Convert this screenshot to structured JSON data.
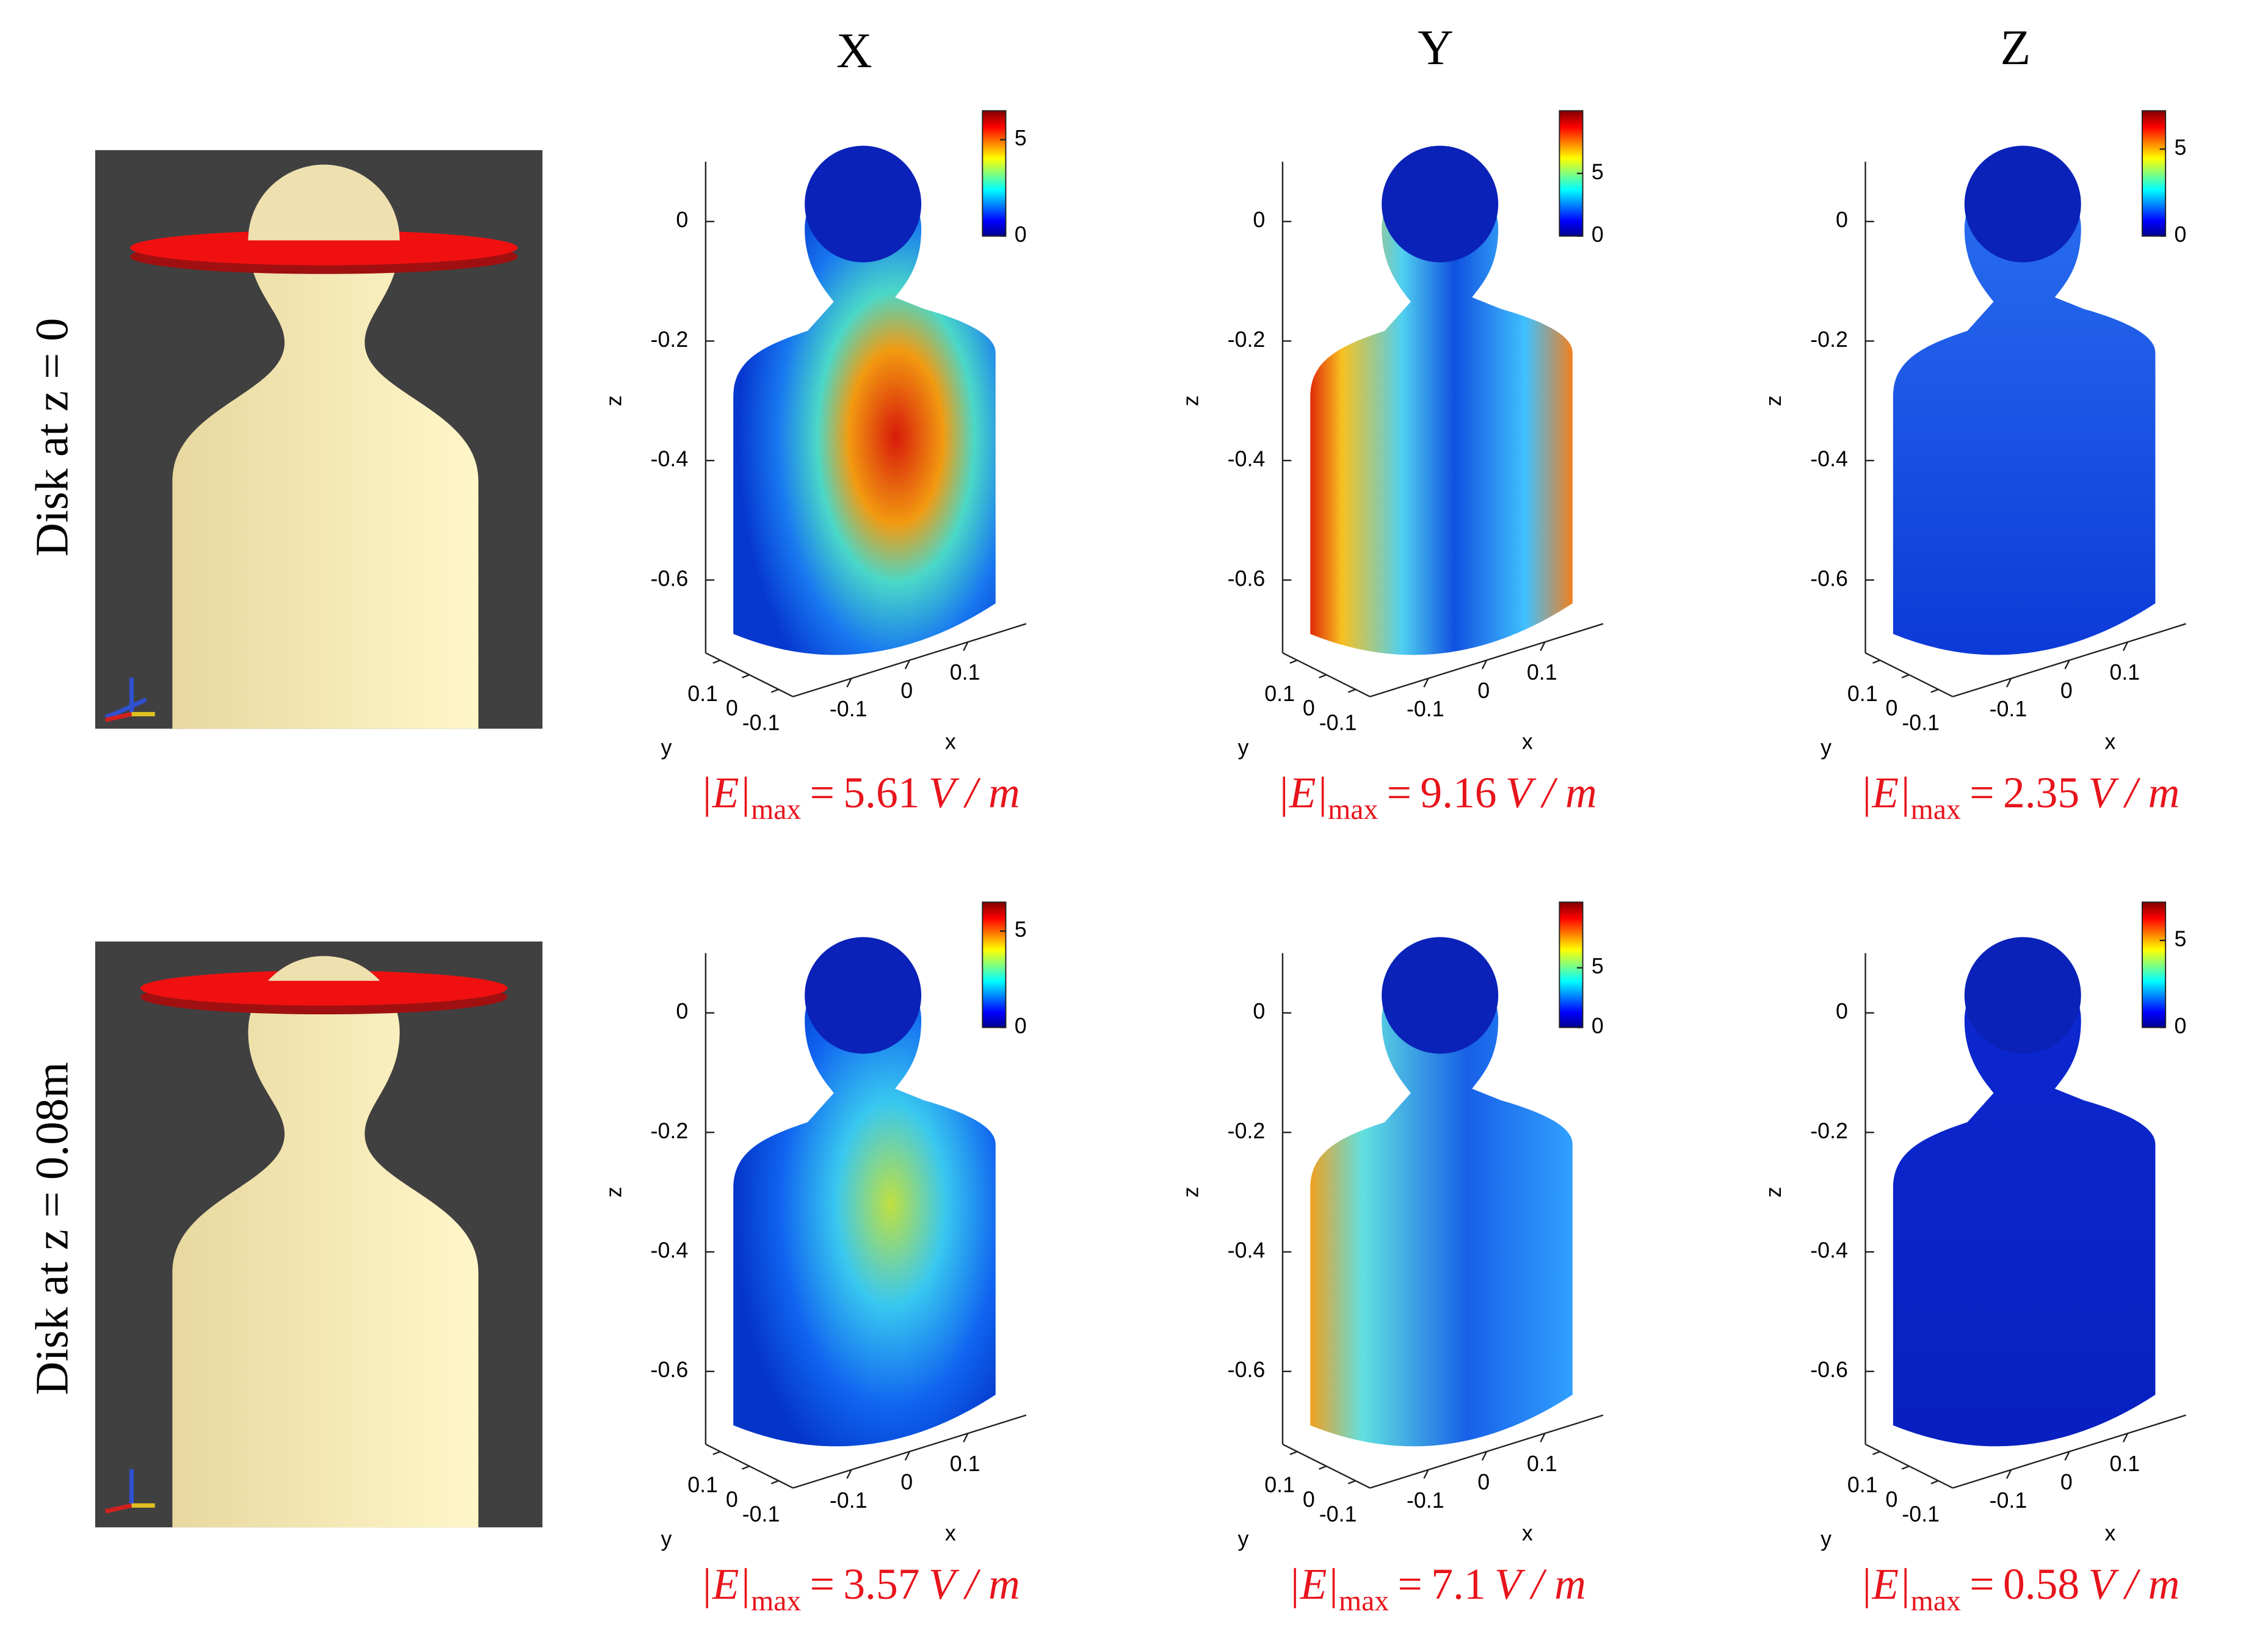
{
  "columns": [
    "X",
    "Y",
    "Z"
  ],
  "rows": [
    {
      "label": "Disk at z = 0",
      "panels": [
        {
          "colorbar": {
            "clim": [
              0,
              6.5
            ],
            "ticks": [
              0,
              5
            ]
          },
          "zlim": [
            -0.7,
            0.1
          ],
          "zticks": [
            0,
            -0.2,
            -0.4,
            -0.6
          ],
          "xlim": [
            -0.2,
            0.2
          ],
          "xticks": [
            -0.1,
            0,
            0.1
          ],
          "ylim": [
            0.15,
            -0.15
          ],
          "yticks": [
            0.1,
            0,
            -0.1
          ],
          "xlabel": "x",
          "ylabel": "y",
          "zlabel": "z",
          "emax": {
            "symbol": "|E|",
            "subscript": "max",
            "equals": "=",
            "value": 5.61,
            "unit": "V / m"
          }
        },
        {
          "colorbar": {
            "clim": [
              0,
              10
            ],
            "ticks": [
              0,
              5
            ]
          },
          "zlim": [
            -0.7,
            0.1
          ],
          "zticks": [
            0,
            -0.2,
            -0.4,
            -0.6
          ],
          "xlim": [
            -0.2,
            0.2
          ],
          "xticks": [
            -0.1,
            0,
            0.1
          ],
          "ylim": [
            0.15,
            -0.15
          ],
          "yticks": [
            0.1,
            0,
            -0.1
          ],
          "xlabel": "x",
          "ylabel": "y",
          "zlabel": "z",
          "emax": {
            "symbol": "|E|",
            "subscript": "max",
            "equals": "=",
            "value": 9.16,
            "unit": "V / m"
          }
        },
        {
          "colorbar": {
            "clim": [
              0,
              7.2
            ],
            "ticks": [
              0,
              5
            ]
          },
          "zlim": [
            -0.7,
            0.1
          ],
          "zticks": [
            0,
            -0.2,
            -0.4,
            -0.6
          ],
          "xlim": [
            -0.2,
            0.2
          ],
          "xticks": [
            -0.1,
            0,
            0.1
          ],
          "ylim": [
            0.15,
            -0.15
          ],
          "yticks": [
            0.1,
            0,
            -0.1
          ],
          "xlabel": "x",
          "ylabel": "y",
          "zlabel": "z",
          "emax": {
            "symbol": "|E|",
            "subscript": "max",
            "equals": "=",
            "value": 2.35,
            "unit": "V / m"
          }
        }
      ]
    },
    {
      "label": "Disk at z = 0.08m",
      "panels": [
        {
          "colorbar": {
            "clim": [
              0,
              6.5
            ],
            "ticks": [
              0,
              5
            ]
          },
          "zlim": [
            -0.7,
            0.1
          ],
          "zticks": [
            0,
            -0.2,
            -0.4,
            -0.6
          ],
          "xlim": [
            -0.2,
            0.2
          ],
          "xticks": [
            -0.1,
            0,
            0.1
          ],
          "ylim": [
            0.15,
            -0.15
          ],
          "yticks": [
            0.1,
            0,
            -0.1
          ],
          "xlabel": "x",
          "ylabel": "y",
          "zlabel": "z",
          "emax": {
            "symbol": "|E|",
            "subscript": "max",
            "equals": "=",
            "value": 3.57,
            "unit": "V / m"
          }
        },
        {
          "colorbar": {
            "clim": [
              0,
              10.5
            ],
            "ticks": [
              0,
              5
            ]
          },
          "zlim": [
            -0.7,
            0.1
          ],
          "zticks": [
            0,
            -0.2,
            -0.4,
            -0.6
          ],
          "xlim": [
            -0.2,
            0.2
          ],
          "xticks": [
            -0.1,
            0,
            0.1
          ],
          "ylim": [
            0.15,
            -0.15
          ],
          "yticks": [
            0.1,
            0,
            -0.1
          ],
          "xlabel": "x",
          "ylabel": "y",
          "zlabel": "z",
          "emax": {
            "symbol": "|E|",
            "subscript": "max",
            "equals": "=",
            "value": 7.1,
            "unit": "V / m"
          }
        },
        {
          "colorbar": {
            "clim": [
              0,
              7.2
            ],
            "ticks": [
              0,
              5
            ]
          },
          "zlim": [
            -0.7,
            0.1
          ],
          "zticks": [
            0,
            -0.2,
            -0.4,
            -0.6
          ],
          "xlim": [
            -0.2,
            0.2
          ],
          "xticks": [
            -0.1,
            0,
            0.1
          ],
          "ylim": [
            0.15,
            -0.15
          ],
          "yticks": [
            0.1,
            0,
            -0.1
          ],
          "xlabel": "x",
          "ylabel": "y",
          "zlabel": "z",
          "emax": {
            "symbol": "|E|",
            "subscript": "max",
            "equals": "=",
            "value": 0.58,
            "unit": "V / m"
          }
        }
      ]
    }
  ]
}
